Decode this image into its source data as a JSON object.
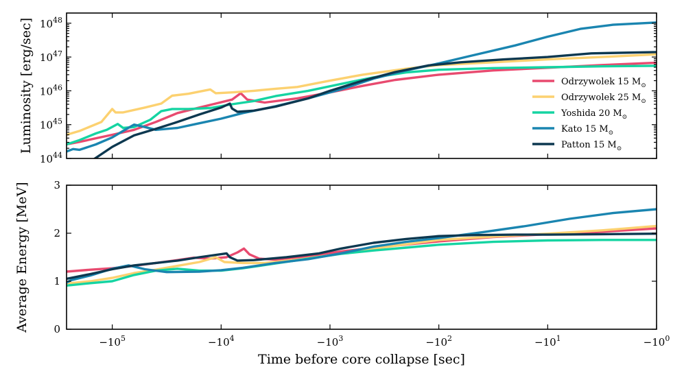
{
  "chart_data": [
    {
      "type": "line",
      "name": "luminosity",
      "ylabel": "Luminosity [erg/sec]",
      "xlabel": "",
      "yscale": "log",
      "ylim": [
        1e+44,
        2e+48
      ],
      "yticks": [
        {
          "value": 1e+44,
          "base": "10",
          "exp": "44"
        },
        {
          "value": 1e+45,
          "base": "10",
          "exp": "45"
        },
        {
          "value": 1e+46,
          "base": "10",
          "exp": "46"
        },
        {
          "value": 1e+47,
          "base": "10",
          "exp": "47"
        },
        {
          "value": 1e+48,
          "base": "10",
          "exp": "48"
        }
      ],
      "legend_position": "center-right",
      "series": [
        {
          "name": "Odrzywolek 15",
          "unit": "M",
          "sub": "⊙",
          "color": "#e84a6f",
          "points": [
            [
              -5.42,
              2.6e+44
            ],
            [
              -5.3,
              3.1e+44
            ],
            [
              -5.0,
              5e+44
            ],
            [
              -4.8,
              7e+44
            ],
            [
              -4.6,
              1.2e+45
            ],
            [
              -4.4,
              2.2e+45
            ],
            [
              -4.2,
              3.2e+45
            ],
            [
              -4.05,
              4.2e+45
            ],
            [
              -3.9,
              5.5e+45
            ],
            [
              -3.82,
              8.5e+45
            ],
            [
              -3.76,
              5.5e+45
            ],
            [
              -3.6,
              4.5e+45
            ],
            [
              -3.3,
              6e+45
            ],
            [
              -3.0,
              9e+45
            ],
            [
              -2.7,
              1.4e+46
            ],
            [
              -2.4,
              2.1e+46
            ],
            [
              -2.0,
              3e+46
            ],
            [
              -1.5,
              4e+46
            ],
            [
              -1.0,
              4.8e+46
            ],
            [
              -0.5,
              5.8e+46
            ],
            [
              0,
              6.8e+46
            ]
          ]
        },
        {
          "name": "Odrzywolek 25",
          "unit": "M",
          "sub": "⊙",
          "color": "#fcd170",
          "points": [
            [
              -5.42,
              5e+44
            ],
            [
              -5.3,
              6.5e+44
            ],
            [
              -5.1,
              1.2e+45
            ],
            [
              -5.0,
              2.9e+45
            ],
            [
              -4.97,
              2.3e+45
            ],
            [
              -4.9,
              2.3e+45
            ],
            [
              -4.7,
              3.2e+45
            ],
            [
              -4.55,
              4.2e+45
            ],
            [
              -4.45,
              7.2e+45
            ],
            [
              -4.3,
              8.2e+45
            ],
            [
              -4.1,
              1.1e+46
            ],
            [
              -4.05,
              8.5e+45
            ],
            [
              -3.9,
              9e+45
            ],
            [
              -3.7,
              1e+46
            ],
            [
              -3.5,
              1.15e+46
            ],
            [
              -3.3,
              1.3e+46
            ],
            [
              -3.0,
              2e+46
            ],
            [
              -2.7,
              3e+46
            ],
            [
              -2.3,
              4.5e+46
            ],
            [
              -2.0,
              5.8e+46
            ],
            [
              -1.5,
              7e+46
            ],
            [
              -1.0,
              8.5e+46
            ],
            [
              -0.5,
              1e+47
            ],
            [
              0,
              1.2e+47
            ]
          ]
        },
        {
          "name": "Yoshida 20",
          "unit": "M",
          "sub": "⊙",
          "color": "#15d4a2",
          "points": [
            [
              -5.42,
              2.6e+44
            ],
            [
              -5.3,
              3.5e+44
            ],
            [
              -5.15,
              5.5e+44
            ],
            [
              -5.05,
              7e+44
            ],
            [
              -4.95,
              1.05e+45
            ],
            [
              -4.9,
              8e+44
            ],
            [
              -4.8,
              8.5e+44
            ],
            [
              -4.65,
              1.4e+45
            ],
            [
              -4.55,
              2.5e+45
            ],
            [
              -4.45,
              2.9e+45
            ],
            [
              -4.3,
              2.9e+45
            ],
            [
              -4.1,
              3.1e+45
            ],
            [
              -3.9,
              4e+45
            ],
            [
              -3.7,
              5e+45
            ],
            [
              -3.5,
              7e+45
            ],
            [
              -3.2,
              1e+46
            ],
            [
              -2.9,
              1.6e+46
            ],
            [
              -2.6,
              2.5e+46
            ],
            [
              -2.3,
              3.5e+46
            ],
            [
              -2.0,
              4.2e+46
            ],
            [
              -1.5,
              4.7e+46
            ],
            [
              -1.0,
              5e+46
            ],
            [
              -0.5,
              5.3e+46
            ],
            [
              0,
              5.5e+46
            ]
          ]
        },
        {
          "name": "Kato 15",
          "unit": "M",
          "sub": "⊙",
          "color": "#1a85b0",
          "points": [
            [
              -5.42,
              1.6e+44
            ],
            [
              -5.36,
              1.9e+44
            ],
            [
              -5.3,
              1.8e+44
            ],
            [
              -5.15,
              2.6e+44
            ],
            [
              -5.0,
              4.2e+44
            ],
            [
              -4.9,
              6.5e+44
            ],
            [
              -4.8,
              1e+45
            ],
            [
              -4.7,
              8.5e+44
            ],
            [
              -4.6,
              7e+44
            ],
            [
              -4.4,
              8e+44
            ],
            [
              -4.2,
              1.1e+45
            ],
            [
              -4.0,
              1.5e+45
            ],
            [
              -3.8,
              2.2e+45
            ],
            [
              -3.5,
              3.5e+45
            ],
            [
              -3.2,
              6e+45
            ],
            [
              -2.9,
              1.1e+46
            ],
            [
              -2.6,
              2.3e+46
            ],
            [
              -2.3,
              4e+46
            ],
            [
              -2.0,
              6.5e+46
            ],
            [
              -1.7,
              1.1e+47
            ],
            [
              -1.3,
              2.2e+47
            ],
            [
              -1.0,
              4e+47
            ],
            [
              -0.7,
              6.8e+47
            ],
            [
              -0.4,
              9e+47
            ],
            [
              0,
              1.05e+48
            ]
          ]
        },
        {
          "name": "Patton 15",
          "unit": "M",
          "sub": "⊙",
          "color": "#0d3850",
          "points": [
            [
              -5.18,
              9e+43
            ],
            [
              -5.0,
              2.2e+44
            ],
            [
              -4.8,
              4.8e+44
            ],
            [
              -4.6,
              7.5e+44
            ],
            [
              -4.4,
              1.2e+45
            ],
            [
              -4.2,
              2e+45
            ],
            [
              -4.0,
              3.2e+45
            ],
            [
              -3.92,
              4.2e+45
            ],
            [
              -3.9,
              3e+45
            ],
            [
              -3.85,
              2.4e+45
            ],
            [
              -3.7,
              2.6e+45
            ],
            [
              -3.5,
              3.4e+45
            ],
            [
              -3.2,
              6e+45
            ],
            [
              -3.0,
              1e+46
            ],
            [
              -2.7,
              2e+46
            ],
            [
              -2.4,
              3.6e+46
            ],
            [
              -2.1,
              5.6e+46
            ],
            [
              -1.8,
              7e+46
            ],
            [
              -1.4,
              8.5e+46
            ],
            [
              -1.0,
              1e+47
            ],
            [
              -0.6,
              1.28e+47
            ],
            [
              0,
              1.4e+47
            ]
          ]
        }
      ]
    },
    {
      "type": "line",
      "name": "average_energy",
      "ylabel": "Average Energy [MeV]",
      "xlabel": "Time before core collapse [sec]",
      "yscale": "linear",
      "ylim": [
        0,
        3
      ],
      "yticks": [
        {
          "value": 0,
          "label": "0"
        },
        {
          "value": 1,
          "label": "1"
        },
        {
          "value": 2,
          "label": "2"
        },
        {
          "value": 3,
          "label": "3"
        }
      ],
      "series": [
        {
          "name": "Odrzywolek 15",
          "color": "#e84a6f",
          "points": [
            [
              -5.42,
              1.2
            ],
            [
              -5.2,
              1.24
            ],
            [
              -5.0,
              1.27
            ],
            [
              -4.8,
              1.32
            ],
            [
              -4.6,
              1.38
            ],
            [
              -4.4,
              1.44
            ],
            [
              -4.25,
              1.49
            ],
            [
              -4.1,
              1.47
            ],
            [
              -3.95,
              1.5
            ],
            [
              -3.85,
              1.6
            ],
            [
              -3.79,
              1.68
            ],
            [
              -3.74,
              1.56
            ],
            [
              -3.65,
              1.47
            ],
            [
              -3.5,
              1.45
            ],
            [
              -3.2,
              1.52
            ],
            [
              -2.9,
              1.62
            ],
            [
              -2.5,
              1.72
            ],
            [
              -2.0,
              1.83
            ],
            [
              -1.5,
              1.92
            ],
            [
              -1.0,
              1.98
            ],
            [
              -0.5,
              2.03
            ],
            [
              0,
              2.1
            ]
          ]
        },
        {
          "name": "Odrzywolek 25",
          "color": "#fcd170",
          "points": [
            [
              -5.42,
              0.95
            ],
            [
              -5.2,
              1.0
            ],
            [
              -5.0,
              1.07
            ],
            [
              -4.8,
              1.17
            ],
            [
              -4.6,
              1.24
            ],
            [
              -4.4,
              1.32
            ],
            [
              -4.2,
              1.4
            ],
            [
              -4.05,
              1.5
            ],
            [
              -3.97,
              1.4
            ],
            [
              -3.8,
              1.38
            ],
            [
              -3.6,
              1.38
            ],
            [
              -3.3,
              1.45
            ],
            [
              -3.0,
              1.54
            ],
            [
              -2.6,
              1.68
            ],
            [
              -2.2,
              1.8
            ],
            [
              -2.0,
              1.86
            ],
            [
              -1.5,
              1.93
            ],
            [
              -1.0,
              1.99
            ],
            [
              -0.5,
              2.06
            ],
            [
              0,
              2.15
            ]
          ]
        },
        {
          "name": "Yoshida 20",
          "color": "#15d4a2",
          "points": [
            [
              -5.42,
              0.91
            ],
            [
              -5.2,
              0.96
            ],
            [
              -5.0,
              1.0
            ],
            [
              -4.8,
              1.13
            ],
            [
              -4.6,
              1.22
            ],
            [
              -4.4,
              1.26
            ],
            [
              -4.2,
              1.22
            ],
            [
              -4.0,
              1.22
            ],
            [
              -3.8,
              1.27
            ],
            [
              -3.5,
              1.37
            ],
            [
              -3.2,
              1.47
            ],
            [
              -2.9,
              1.57
            ],
            [
              -2.6,
              1.64
            ],
            [
              -2.3,
              1.7
            ],
            [
              -2.0,
              1.76
            ],
            [
              -1.5,
              1.82
            ],
            [
              -1.0,
              1.85
            ],
            [
              -0.5,
              1.86
            ],
            [
              0,
              1.86
            ]
          ]
        },
        {
          "name": "Kato 15",
          "color": "#1a85b0",
          "points": [
            [
              -5.42,
              0.97
            ],
            [
              -5.38,
              1.02
            ],
            [
              -5.2,
              1.12
            ],
            [
              -5.0,
              1.26
            ],
            [
              -4.85,
              1.33
            ],
            [
              -4.7,
              1.25
            ],
            [
              -4.5,
              1.19
            ],
            [
              -4.2,
              1.2
            ],
            [
              -4.0,
              1.23
            ],
            [
              -3.8,
              1.28
            ],
            [
              -3.5,
              1.38
            ],
            [
              -3.2,
              1.46
            ],
            [
              -2.9,
              1.58
            ],
            [
              -2.6,
              1.72
            ],
            [
              -2.3,
              1.82
            ],
            [
              -2.0,
              1.9
            ],
            [
              -1.6,
              2.02
            ],
            [
              -1.2,
              2.15
            ],
            [
              -0.8,
              2.3
            ],
            [
              -0.4,
              2.42
            ],
            [
              0,
              2.5
            ]
          ]
        },
        {
          "name": "Patton 15",
          "color": "#0d3850",
          "points": [
            [
              -5.42,
              1.05
            ],
            [
              -5.2,
              1.15
            ],
            [
              -5.0,
              1.25
            ],
            [
              -4.8,
              1.33
            ],
            [
              -4.6,
              1.38
            ],
            [
              -4.4,
              1.43
            ],
            [
              -4.2,
              1.5
            ],
            [
              -3.95,
              1.58
            ],
            [
              -3.92,
              1.5
            ],
            [
              -3.85,
              1.43
            ],
            [
              -3.7,
              1.44
            ],
            [
              -3.4,
              1.5
            ],
            [
              -3.1,
              1.58
            ],
            [
              -2.9,
              1.68
            ],
            [
              -2.6,
              1.8
            ],
            [
              -2.3,
              1.88
            ],
            [
              -2.0,
              1.94
            ],
            [
              -1.7,
              1.96
            ],
            [
              -1.3,
              1.97
            ],
            [
              -1.0,
              1.97
            ],
            [
              -0.5,
              1.98
            ],
            [
              0,
              1.99
            ]
          ]
        }
      ]
    }
  ],
  "xaxis": {
    "xlim": [
      -5.42,
      0
    ],
    "scale": "symlog",
    "ticks": [
      {
        "value": -5,
        "base": "−10",
        "exp": "5"
      },
      {
        "value": -4,
        "base": "−10",
        "exp": "4"
      },
      {
        "value": -3,
        "base": "−10",
        "exp": "3"
      },
      {
        "value": -2,
        "base": "−10",
        "exp": "2"
      },
      {
        "value": -1,
        "base": "−10",
        "exp": "1"
      },
      {
        "value": 0,
        "base": "−10",
        "exp": "0"
      }
    ]
  }
}
